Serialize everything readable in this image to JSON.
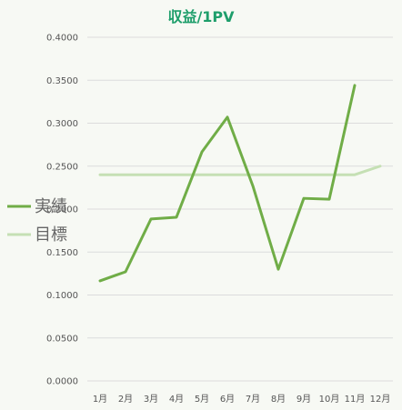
{
  "chart_data": {
    "type": "line",
    "title": "収益/1PV",
    "categories": [
      "1月",
      "2月",
      "3月",
      "4月",
      "5月",
      "6月",
      "7月",
      "8月",
      "9月",
      "10月",
      "11月",
      "12月"
    ],
    "ylim": [
      0,
      0.4
    ],
    "yticks": [
      "0.0000",
      "0.0500",
      "0.1000",
      "0.1500",
      "0.2000",
      "0.2500",
      "0.3000",
      "0.3500",
      "0.4000"
    ],
    "grid": true,
    "legend_position": "left",
    "series": [
      {
        "name": "実績",
        "color": "#70ad47",
        "values": [
          0.1165,
          0.127,
          0.1885,
          0.1905,
          0.2665,
          0.307,
          0.227,
          0.13,
          0.2125,
          0.2115,
          0.344,
          null
        ]
      },
      {
        "name": "目標",
        "color": "#c5e0b4",
        "values": [
          0.24,
          0.24,
          0.24,
          0.24,
          0.24,
          0.24,
          0.24,
          0.24,
          0.24,
          0.24,
          0.24,
          0.25
        ]
      }
    ]
  }
}
